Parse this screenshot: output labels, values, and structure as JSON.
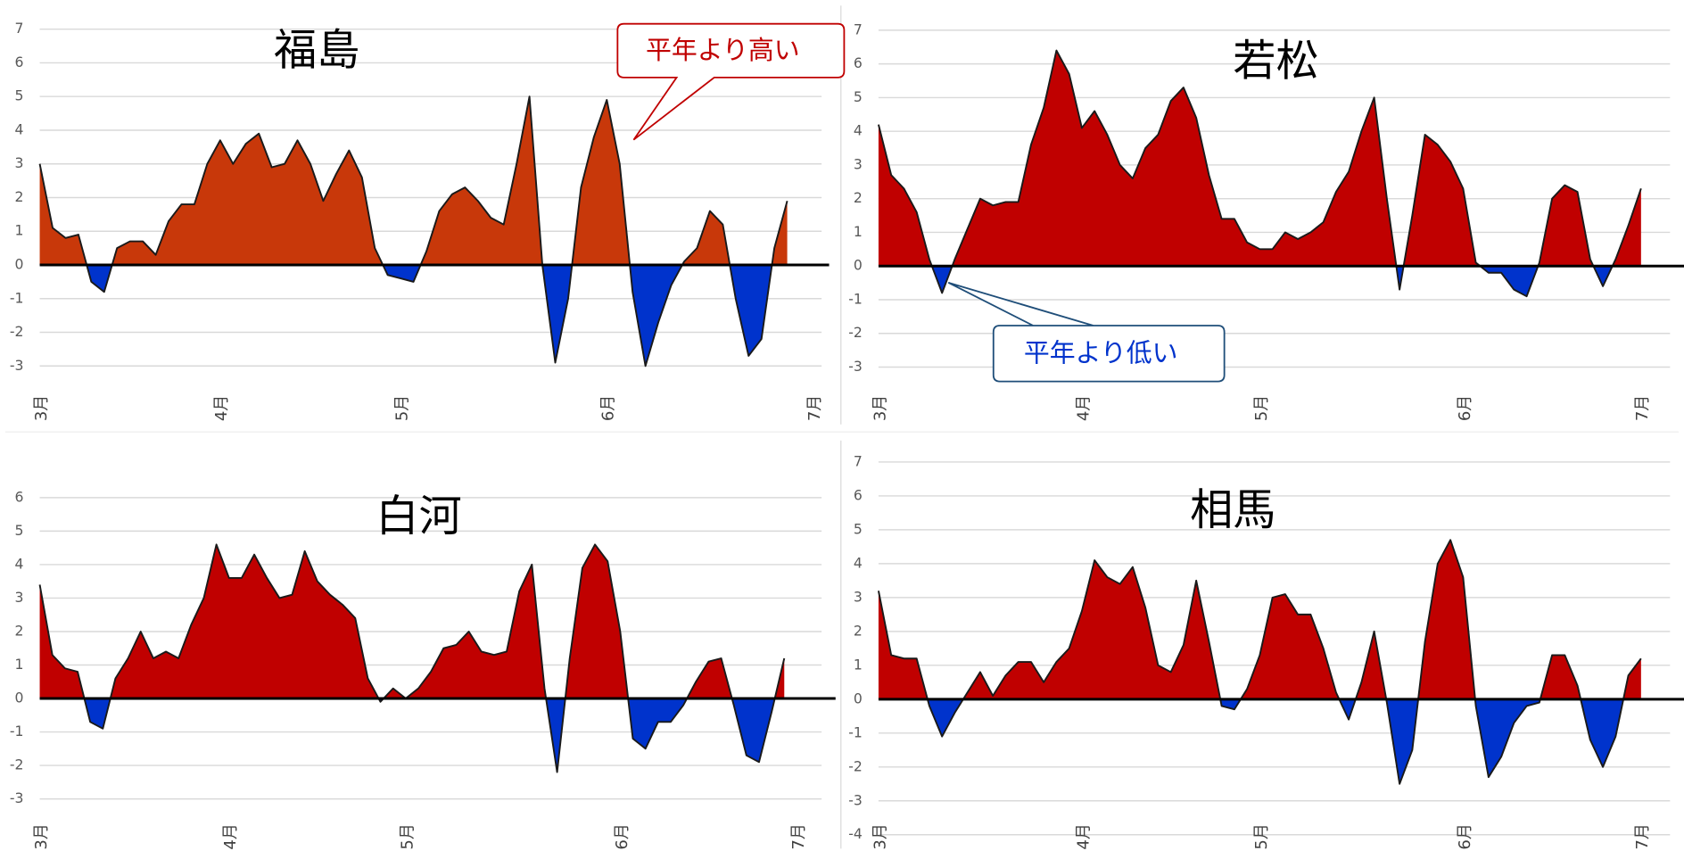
{
  "chart_data": [
    {
      "type": "area",
      "title": "福島",
      "positive_color": "#c8380a",
      "negative_color": "#0033cc",
      "annotation": "平年より高い",
      "categories": [
        "3月",
        null,
        null,
        null,
        null,
        null,
        null,
        null,
        null,
        null,
        null,
        null,
        null,
        null,
        "4月",
        null,
        null,
        null,
        null,
        null,
        null,
        null,
        null,
        null,
        null,
        null,
        null,
        null,
        "5月",
        null,
        null,
        null,
        null,
        null,
        null,
        null,
        null,
        null,
        null,
        null,
        null,
        null,
        null,
        null,
        "6月",
        null,
        null,
        null,
        null,
        null,
        null,
        null,
        null,
        null,
        null,
        null,
        null,
        null,
        null,
        null,
        "7月"
      ],
      "values": [
        3.0,
        1.1,
        0.8,
        0.9,
        -0.5,
        -0.8,
        0.5,
        0.7,
        0.7,
        0.3,
        1.3,
        1.8,
        1.8,
        3.0,
        3.7,
        3.0,
        3.6,
        3.9,
        2.9,
        3.0,
        3.7,
        3.0,
        1.9,
        2.7,
        3.4,
        2.6,
        0.5,
        -0.3,
        -0.4,
        -0.5,
        0.4,
        1.6,
        2.1,
        2.3,
        1.9,
        1.4,
        1.2,
        3.0,
        5.0,
        0.0,
        -2.9,
        -1.0,
        2.3,
        3.8,
        4.9,
        3.0,
        -0.8,
        -3.0,
        -1.7,
        -0.6,
        0.1,
        0.5,
        1.6,
        1.2,
        -1.0,
        -2.7,
        -2.2,
        0.5,
        1.9,
        null,
        null
      ],
      "ylim": [
        -3.3,
        7
      ],
      "yticks": [
        -3,
        -2,
        -1,
        0,
        1,
        2,
        3,
        4,
        5,
        6,
        7
      ],
      "grid": true
    },
    {
      "type": "area",
      "title": "若松",
      "positive_color": "#c00000",
      "negative_color": "#0033cc",
      "annotation": "平年より低い",
      "categories": [
        "3月",
        null,
        null,
        null,
        null,
        null,
        null,
        null,
        null,
        null,
        null,
        null,
        null,
        null,
        null,
        null,
        "4月",
        null,
        null,
        null,
        null,
        null,
        null,
        null,
        null,
        null,
        null,
        null,
        null,
        null,
        "5月",
        null,
        null,
        null,
        null,
        null,
        null,
        null,
        null,
        null,
        null,
        null,
        null,
        null,
        null,
        null,
        "6月",
        null,
        null,
        null,
        null,
        null,
        null,
        null,
        null,
        null,
        null,
        null,
        null,
        null,
        "7月"
      ],
      "values": [
        4.2,
        2.7,
        2.3,
        1.6,
        0.2,
        -0.8,
        0.2,
        1.1,
        2.0,
        1.8,
        1.9,
        1.9,
        3.6,
        4.7,
        6.4,
        5.7,
        4.1,
        4.6,
        3.9,
        3.0,
        2.6,
        3.5,
        3.9,
        4.9,
        5.3,
        4.4,
        2.7,
        1.4,
        1.4,
        0.7,
        0.5,
        0.5,
        1.0,
        0.8,
        1.0,
        1.3,
        2.2,
        2.8,
        4.0,
        5.0,
        2.0,
        -0.7,
        1.5,
        3.9,
        3.6,
        3.1,
        2.3,
        0.1,
        -0.2,
        -0.2,
        -0.7,
        -0.9,
        0.1,
        2.0,
        2.4,
        2.2,
        0.2,
        -0.6,
        0.2,
        1.2,
        2.3
      ],
      "ylim": [
        -3.3,
        7
      ],
      "yticks": [
        -3,
        -2,
        -1,
        0,
        1,
        2,
        3,
        4,
        5,
        6,
        7
      ],
      "grid": true
    },
    {
      "type": "area",
      "title": "白河",
      "positive_color": "#c00000",
      "negative_color": "#0033cc",
      "categories": [
        "3月",
        null,
        null,
        null,
        null,
        null,
        null,
        null,
        null,
        null,
        null,
        null,
        null,
        null,
        null,
        "4月",
        null,
        null,
        null,
        null,
        null,
        null,
        null,
        null,
        null,
        null,
        null,
        null,
        null,
        "5月",
        null,
        null,
        null,
        null,
        null,
        null,
        null,
        null,
        null,
        null,
        null,
        null,
        null,
        null,
        null,
        null,
        "6月",
        null,
        null,
        null,
        null,
        null,
        null,
        null,
        null,
        null,
        null,
        null,
        null,
        null,
        "7月"
      ],
      "values": [
        3.4,
        1.3,
        0.9,
        0.8,
        -0.7,
        -0.9,
        0.6,
        1.2,
        2.0,
        1.2,
        1.4,
        1.2,
        2.2,
        3.0,
        4.6,
        3.6,
        3.6,
        4.3,
        3.6,
        3.0,
        3.1,
        4.4,
        3.5,
        3.1,
        2.8,
        2.4,
        0.6,
        -0.1,
        0.3,
        0.0,
        0.3,
        0.8,
        1.5,
        1.6,
        2.0,
        1.4,
        1.3,
        1.4,
        3.2,
        4.0,
        0.3,
        -2.2,
        1.2,
        3.9,
        4.6,
        4.1,
        2.0,
        -1.2,
        -1.5,
        -0.7,
        -0.7,
        -0.2,
        0.5,
        1.1,
        1.2,
        -0.2,
        -1.7,
        -1.9,
        -0.4,
        1.2,
        null
      ],
      "ylim": [
        -3.3,
        7
      ],
      "yticks": [
        -3,
        -2,
        -1,
        0,
        1,
        2,
        3,
        4,
        5,
        6
      ],
      "grid": true
    },
    {
      "type": "area",
      "title": "相馬",
      "positive_color": "#c00000",
      "negative_color": "#0033cc",
      "categories": [
        "3月",
        null,
        null,
        null,
        null,
        null,
        null,
        null,
        null,
        null,
        null,
        null,
        null,
        null,
        null,
        null,
        "4月",
        null,
        null,
        null,
        null,
        null,
        null,
        null,
        null,
        null,
        null,
        null,
        null,
        null,
        "5月",
        null,
        null,
        null,
        null,
        null,
        null,
        null,
        null,
        null,
        null,
        null,
        null,
        null,
        null,
        null,
        "6月",
        null,
        null,
        null,
        null,
        null,
        null,
        null,
        null,
        null,
        null,
        null,
        null,
        null,
        "7月"
      ],
      "values": [
        3.2,
        1.3,
        1.2,
        1.2,
        -0.2,
        -1.1,
        -0.4,
        0.2,
        0.8,
        0.1,
        0.7,
        1.1,
        1.1,
        0.5,
        1.1,
        1.5,
        2.6,
        4.1,
        3.6,
        3.4,
        3.9,
        2.7,
        1.0,
        0.8,
        1.6,
        3.5,
        1.7,
        -0.2,
        -0.3,
        0.3,
        1.3,
        3.0,
        3.1,
        2.5,
        2.5,
        1.5,
        0.2,
        -0.6,
        0.5,
        2.0,
        -0.1,
        -2.5,
        -1.5,
        1.7,
        4.0,
        4.7,
        3.6,
        -0.2,
        -2.3,
        -1.7,
        -0.7,
        -0.2,
        -0.1,
        1.3,
        1.3,
        0.4,
        -1.2,
        -2.0,
        -1.1,
        0.7,
        1.2
      ],
      "ylim": [
        -4,
        7
      ],
      "yticks": [
        -4,
        -3,
        -2,
        -1,
        0,
        1,
        2,
        3,
        4,
        5,
        6,
        7
      ],
      "grid": true
    }
  ]
}
